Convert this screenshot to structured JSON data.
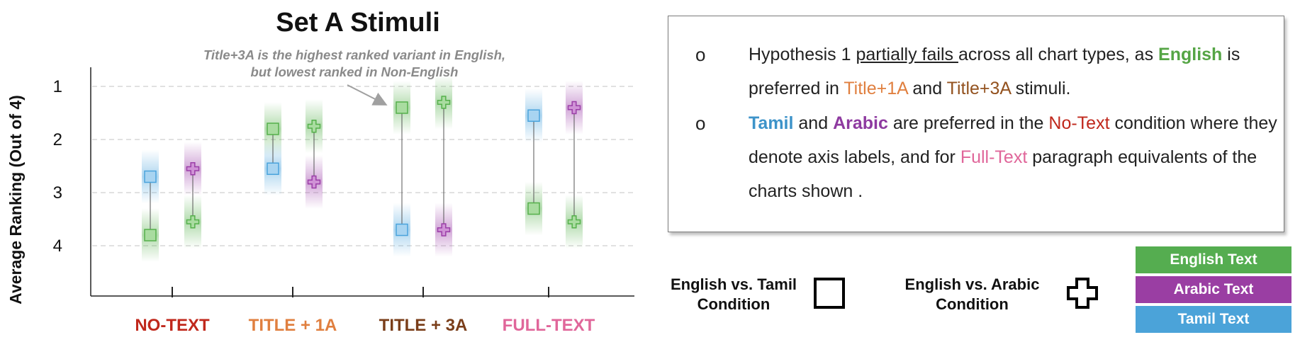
{
  "chart_data": {
    "type": "dumbbell",
    "title": "Set A Stimuli",
    "ylabel": "Average Ranking (Out of 4)",
    "ylim": [
      1,
      5
    ],
    "y_inverted": true,
    "yticks": [
      1,
      2,
      3,
      4
    ],
    "categories": [
      "NO-TEXT",
      "TITLE + 1A",
      "TITLE + 3A",
      "FULL-TEXT"
    ],
    "category_colors": [
      "#c0281c",
      "#e07f3f",
      "#7a3e1a",
      "#e0669a"
    ],
    "annotation": "Title+3A is the highest ranked variant in English, but lowest ranked in Non-English",
    "pairs": [
      {
        "category": "NO-TEXT",
        "condition": "English vs. Tamil",
        "english": 3.8,
        "other": 2.7
      },
      {
        "category": "NO-TEXT",
        "condition": "English vs. Arabic",
        "english": 3.55,
        "other": 2.55
      },
      {
        "category": "TITLE + 1A",
        "condition": "English vs. Tamil",
        "english": 1.8,
        "other": 2.55
      },
      {
        "category": "TITLE + 1A",
        "condition": "English vs. Arabic",
        "english": 1.75,
        "other": 2.8
      },
      {
        "category": "TITLE + 3A",
        "condition": "English vs. Tamil",
        "english": 1.4,
        "other": 3.7
      },
      {
        "category": "TITLE + 3A",
        "condition": "English vs. Arabic",
        "english": 1.3,
        "other": 3.7
      },
      {
        "category": "FULL-TEXT",
        "condition": "English vs. Tamil",
        "english": 3.3,
        "other": 1.55
      },
      {
        "category": "FULL-TEXT",
        "condition": "English vs. Arabic",
        "english": 3.55,
        "other": 1.4
      }
    ],
    "series_colors": {
      "english": "#55b04b",
      "arabic": "#9b3ea8",
      "tamil": "#4aa3dc"
    }
  },
  "notes": {
    "bullet_symbol": "o",
    "b1": {
      "p1": "Hypothesis 1 ",
      "p2": "partially fails ",
      "p3": "across all chart types, as ",
      "p4": "English",
      "p5": " is preferred in ",
      "p6": "Title+1A",
      "p7": " and ",
      "p8": "Title+3A",
      "p9": " stimuli."
    },
    "b2": {
      "p1": "Tamil",
      "p2": " and ",
      "p3": "Arabic",
      "p4": " are preferred in the ",
      "p5": "No-Text",
      "p6": " condition where they denote axis labels,  and for ",
      "p7": "Full-Text",
      "p8": " paragraph equivalents of the charts shown ."
    }
  },
  "legend": {
    "tamil_condition_line1": "English vs. Tamil",
    "tamil_condition_line2": "Condition",
    "arabic_condition_line1": "English vs. Arabic",
    "arabic_condition_line2": "Condition",
    "english_text": "English Text",
    "arabic_text": "Arabic Text",
    "tamil_text": "Tamil Text",
    "english_color": "#55ad50",
    "arabic_color": "#9a3ea3",
    "tamil_color": "#4ba3d9"
  }
}
